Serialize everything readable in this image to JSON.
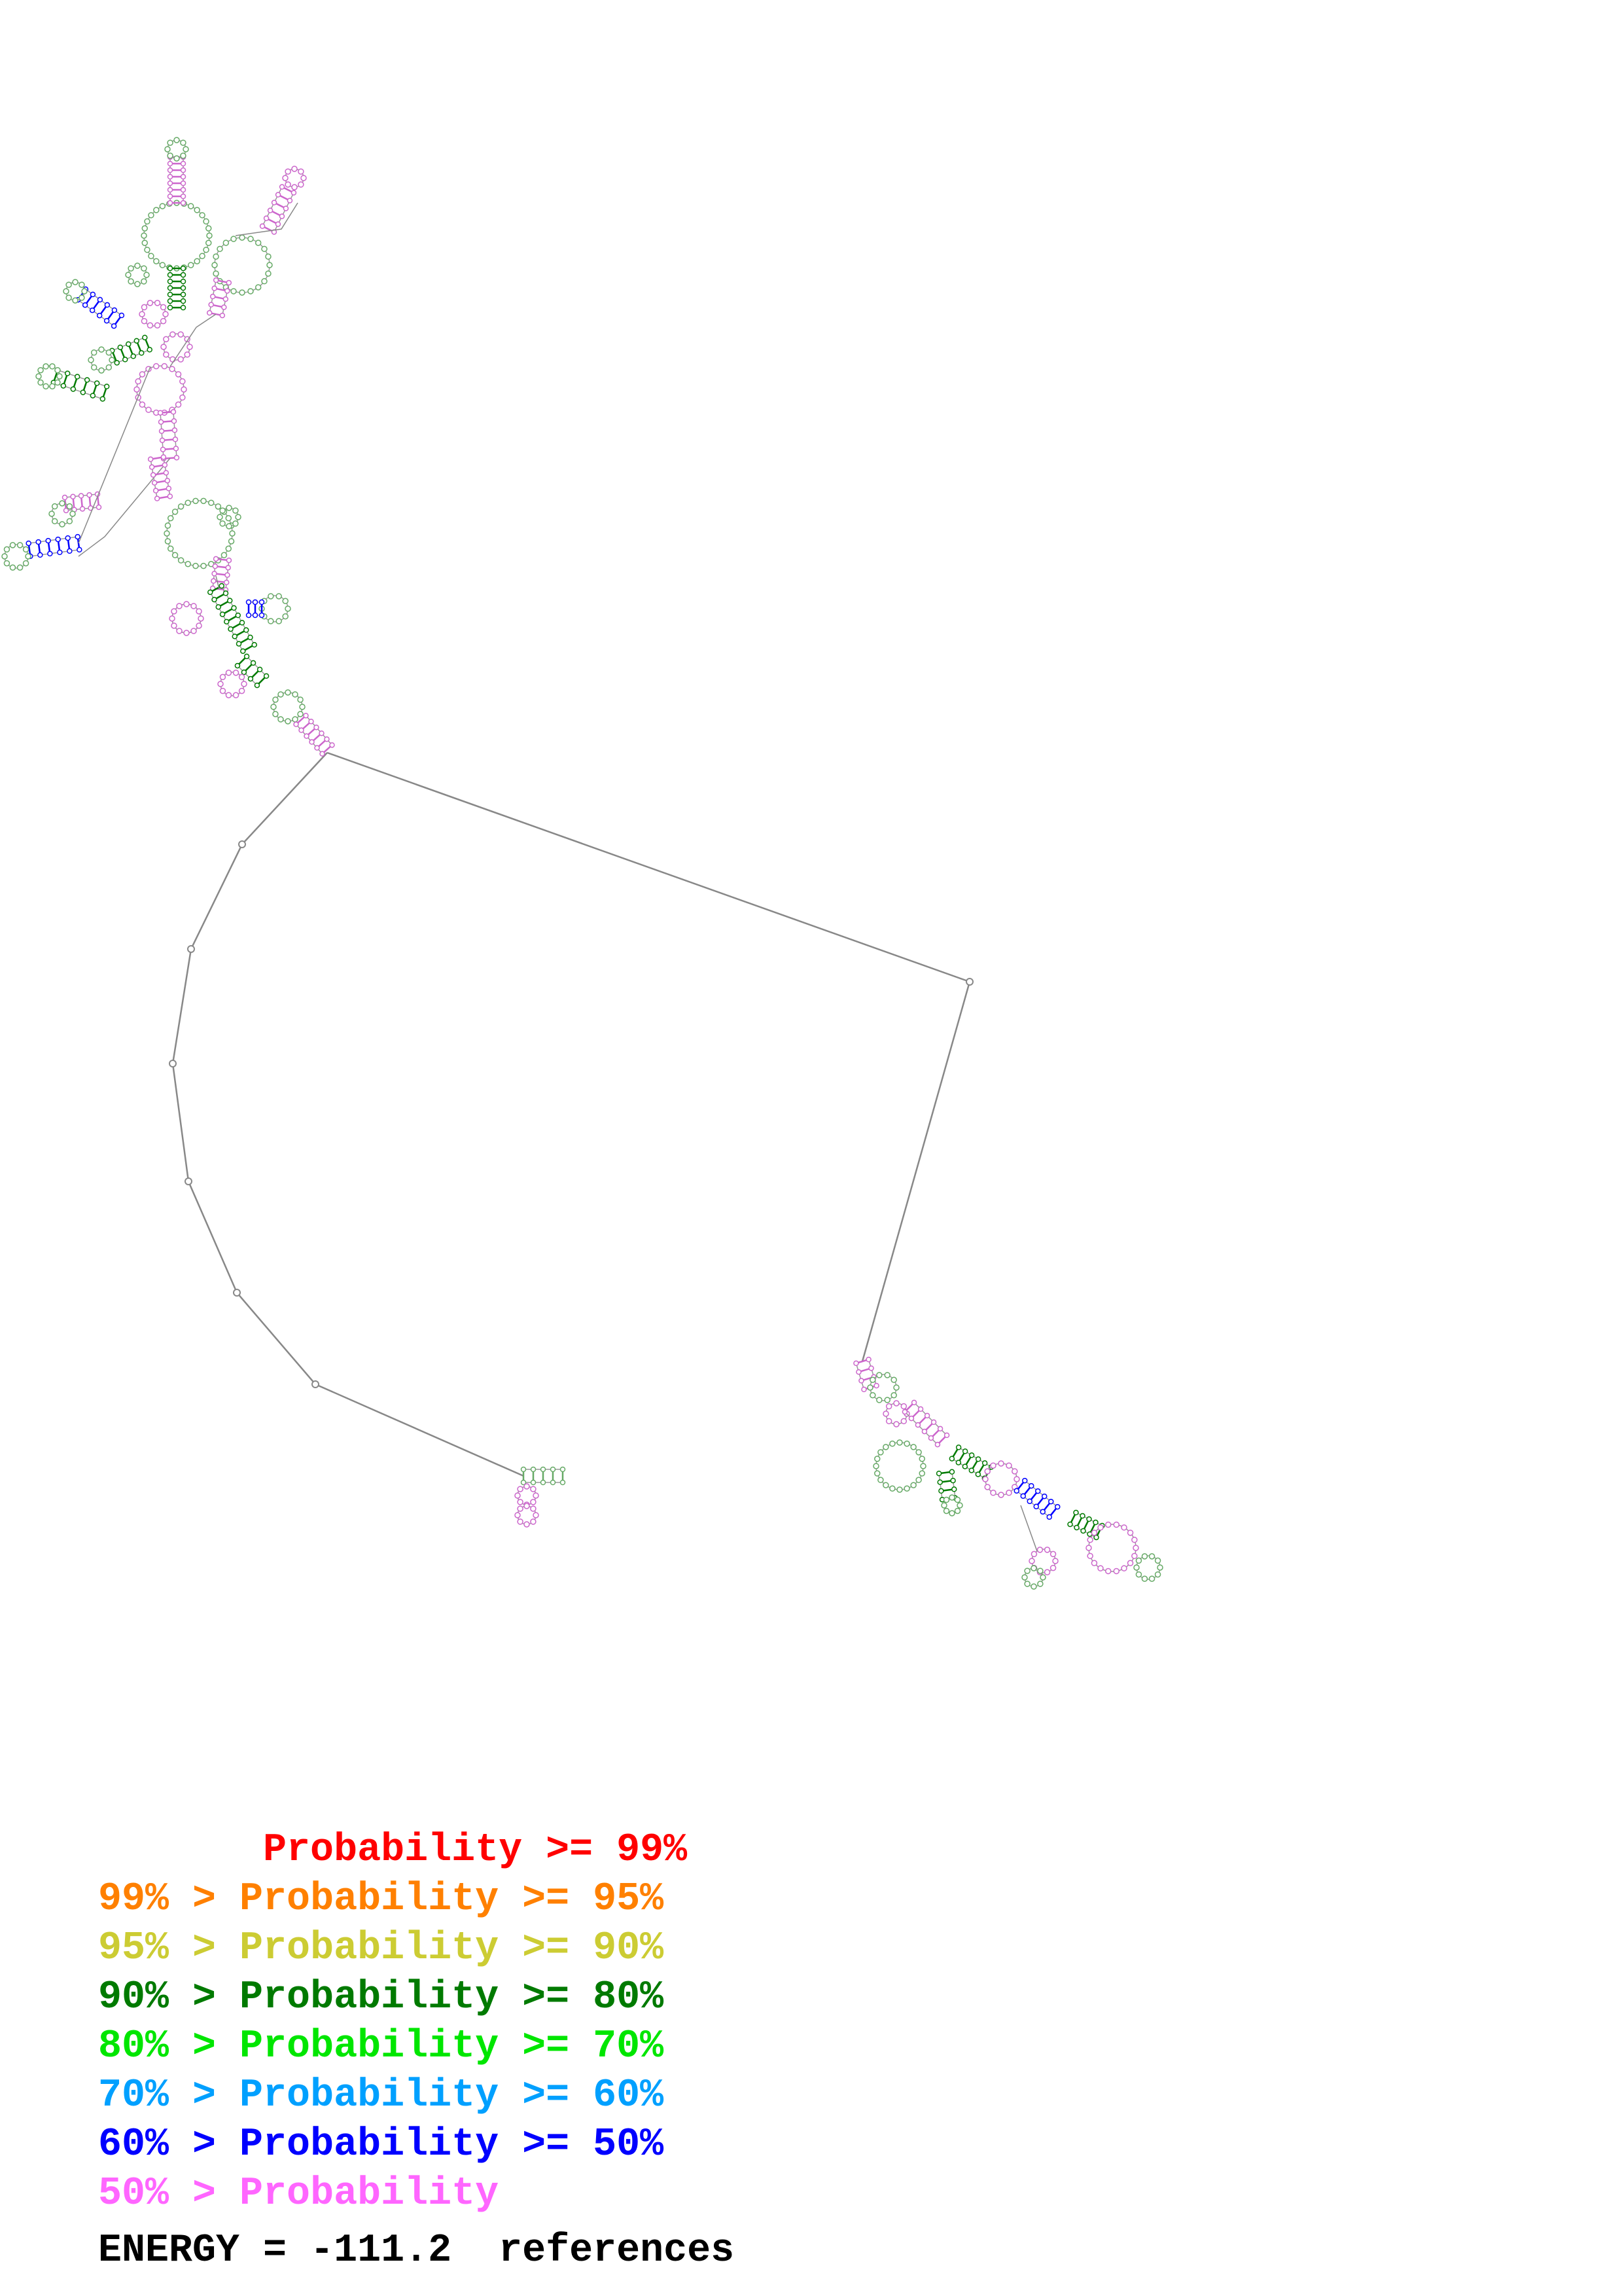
{
  "legend": [
    {
      "prefix": "       ",
      "text": "Probability >= 99%",
      "color": "#ff0000"
    },
    {
      "prefix": "99% > ",
      "text": "Probability >= 95%",
      "color": "#ff8000"
    },
    {
      "prefix": "95% > ",
      "text": "Probability >= 90%",
      "color": "#cccc33"
    },
    {
      "prefix": "90% > ",
      "text": "Probability >= 80%",
      "color": "#007a00"
    },
    {
      "prefix": "80% > ",
      "text": "Probability >= 70%",
      "color": "#00e600"
    },
    {
      "prefix": "70% > ",
      "text": "Probability >= 60%",
      "color": "#00a0ff"
    },
    {
      "prefix": "60% > ",
      "text": "Probability >= 50%",
      "color": "#0000ff"
    },
    {
      "prefix": "50% > ",
      "text": "Probability",
      "color": "#ff66ff"
    }
  ],
  "energy": {
    "label": "ENERGY = ",
    "value": "-111.2",
    "references": "references"
  },
  "colors": {
    "backbone": "#888888",
    "pair_high": "#007a00",
    "pair_mid": "#0000ff",
    "pair_low": "#cc66cc",
    "unpaired": "#66aa66"
  }
}
